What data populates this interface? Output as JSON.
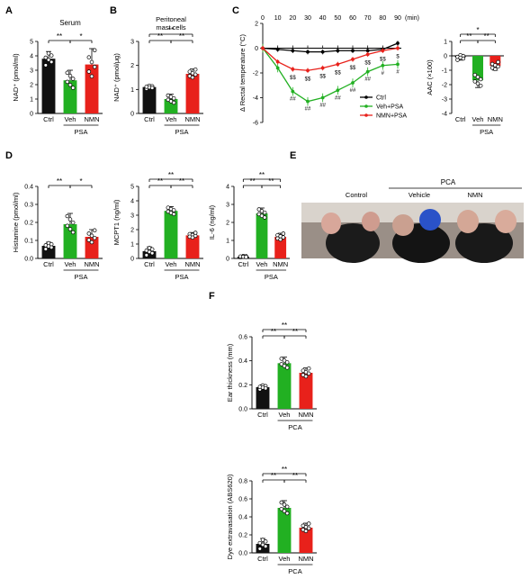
{
  "colors": {
    "ctrl": "#000000",
    "veh": "#22b022",
    "nmn": "#e8211b",
    "ctrl_bar": "#111111"
  },
  "panel_letters": {
    "A": "A",
    "B": "B",
    "C": "C",
    "D": "D",
    "E": "E",
    "F": "F"
  },
  "chart_data": [
    {
      "id": "A",
      "type": "bar",
      "title": "Serum",
      "ylabel": "NAD⁺ (pmol/ml)",
      "ylim": [
        0,
        5
      ],
      "yticks": [
        "0",
        "1",
        "2",
        "3",
        "4",
        "5"
      ],
      "categories": [
        "Ctrl",
        "Veh",
        "NMN"
      ],
      "values": [
        3.8,
        2.3,
        3.4
      ],
      "errors": [
        0.5,
        0.7,
        1.1
      ],
      "group_label": "PSA",
      "significance": [
        {
          "between": [
            "Ctrl",
            "Veh"
          ],
          "text": "**"
        },
        {
          "between": [
            "Veh",
            "NMN"
          ],
          "text": "*"
        }
      ]
    },
    {
      "id": "B",
      "type": "bar",
      "title": "Peritoneal mast cells",
      "ylabel": "NAD⁺ (pmol/μg)",
      "ylim": [
        0,
        3
      ],
      "yticks": [
        "0",
        "1",
        "2",
        "3"
      ],
      "categories": [
        "Ctrl",
        "Veh",
        "NMN"
      ],
      "values": [
        1.1,
        0.6,
        1.65
      ],
      "errors": [
        0.08,
        0.2,
        0.2
      ],
      "group_label": "PSA",
      "significance": [
        {
          "between": [
            "Ctrl",
            "NMN"
          ],
          "text": "**"
        },
        {
          "between": [
            "Ctrl",
            "Veh"
          ],
          "text": "**"
        },
        {
          "between": [
            "Veh",
            "NMN"
          ],
          "text": "**"
        }
      ]
    },
    {
      "id": "C1",
      "type": "line",
      "xlabel": "(min)",
      "ylabel": "Δ Rectal temperature (°C)",
      "ylim": [
        -6,
        2
      ],
      "yticks": [
        "-6",
        "-4",
        "-2",
        "0",
        "2"
      ],
      "x": [
        0,
        10,
        20,
        30,
        40,
        50,
        60,
        70,
        80,
        90
      ],
      "series": [
        {
          "name": "Ctrl",
          "values": [
            0,
            -0.1,
            -0.2,
            -0.3,
            -0.3,
            -0.2,
            -0.2,
            -0.2,
            -0.1,
            0.4
          ]
        },
        {
          "name": "Veh+PSA",
          "values": [
            0,
            -1.6,
            -3.5,
            -4.3,
            -4.0,
            -3.4,
            -2.8,
            -1.9,
            -1.4,
            -1.3
          ]
        },
        {
          "name": "NMN+PSA",
          "values": [
            0,
            -1.1,
            -1.7,
            -1.8,
            -1.6,
            -1.3,
            -0.9,
            -0.5,
            -0.2,
            0
          ]
        }
      ],
      "annotations_ss": [
        "$$",
        "$$",
        "$$",
        "$$",
        "$$",
        "$$",
        "$$",
        "$"
      ],
      "annotations_hash": [
        "##",
        "##",
        "##",
        "##",
        "##",
        "##",
        "#",
        "#"
      ]
    },
    {
      "id": "C2",
      "type": "bar",
      "ylabel": "AAC (×100)",
      "ylim": [
        -4,
        1
      ],
      "yticks": [
        "-4",
        "-3",
        "-2",
        "-1",
        "0",
        "1"
      ],
      "categories": [
        "Ctrl",
        "Veh",
        "NMN"
      ],
      "values": [
        -0.1,
        -1.7,
        -0.7
      ],
      "errors": [
        0.2,
        0.5,
        0.3
      ],
      "group_label": "PSA",
      "significance": [
        {
          "between": [
            "Ctrl",
            "NMN"
          ],
          "text": "*"
        },
        {
          "between": [
            "Ctrl",
            "Veh"
          ],
          "text": "**"
        },
        {
          "between": [
            "Veh",
            "NMN"
          ],
          "text": "**"
        }
      ]
    },
    {
      "id": "D1",
      "type": "bar",
      "ylabel": "Histamine (pmol/ml)",
      "ylim": [
        0,
        0.4
      ],
      "yticks": [
        "0.0",
        "0.1",
        "0.2",
        "0.3",
        "0.4"
      ],
      "categories": [
        "Ctrl",
        "Veh",
        "NMN"
      ],
      "values": [
        0.07,
        0.19,
        0.12
      ],
      "errors": [
        0.02,
        0.06,
        0.04
      ],
      "group_label": "PSA",
      "significance": [
        {
          "between": [
            "Ctrl",
            "Veh"
          ],
          "text": "**"
        },
        {
          "between": [
            "Veh",
            "NMN"
          ],
          "text": "*"
        }
      ]
    },
    {
      "id": "D2",
      "type": "bar",
      "ylabel": "MCPT1 (ng/ml)",
      "ylim": [
        0,
        5
      ],
      "yticks": [
        "0",
        "1",
        "2",
        "3",
        "4",
        "5"
      ],
      "categories": [
        "Ctrl",
        "Veh",
        "NMN"
      ],
      "values": [
        0.5,
        3.3,
        1.6
      ],
      "errors": [
        0.3,
        0.3,
        0.2
      ],
      "group_label": "PSA",
      "significance": [
        {
          "between": [
            "Ctrl",
            "NMN"
          ],
          "text": "**"
        },
        {
          "between": [
            "Ctrl",
            "Veh"
          ],
          "text": "**"
        },
        {
          "between": [
            "Veh",
            "NMN"
          ],
          "text": "**"
        }
      ]
    },
    {
      "id": "D3",
      "type": "bar",
      "ylabel": "IL-6 (ng/ml)",
      "ylim": [
        0,
        4
      ],
      "yticks": [
        "0",
        "1",
        "2",
        "3",
        "4"
      ],
      "categories": [
        "Ctrl",
        "Veh",
        "NMN"
      ],
      "values": [
        0.1,
        2.5,
        1.2
      ],
      "errors": [
        0.05,
        0.3,
        0.2
      ],
      "group_label": "PSA",
      "significance": [
        {
          "between": [
            "Ctrl",
            "NMN"
          ],
          "text": "**"
        },
        {
          "between": [
            "Ctrl",
            "Veh"
          ],
          "text": "**"
        },
        {
          "between": [
            "Veh",
            "NMN"
          ],
          "text": "**"
        }
      ]
    },
    {
      "id": "F1",
      "type": "bar",
      "ylabel": "Ear thickness (mm)",
      "ylim": [
        0,
        0.6
      ],
      "yticks": [
        "0.0",
        "0.2",
        "0.4",
        "0.6"
      ],
      "categories": [
        "Ctrl",
        "Veh",
        "NMN"
      ],
      "values": [
        0.18,
        0.38,
        0.3
      ],
      "errors": [
        0.02,
        0.05,
        0.04
      ],
      "group_label": "PCA",
      "significance": [
        {
          "between": [
            "Ctrl",
            "NMN"
          ],
          "text": "**"
        },
        {
          "between": [
            "Ctrl",
            "Veh"
          ],
          "text": "**"
        },
        {
          "between": [
            "Veh",
            "NMN"
          ],
          "text": "**"
        }
      ]
    },
    {
      "id": "F2",
      "type": "bar",
      "ylabel": "Dye extravasation (ABS620)",
      "ylim": [
        0,
        0.8
      ],
      "yticks": [
        "0.0",
        "0.2",
        "0.4",
        "0.6",
        "0.8"
      ],
      "categories": [
        "Ctrl",
        "Veh",
        "NMN"
      ],
      "values": [
        0.1,
        0.5,
        0.28
      ],
      "errors": [
        0.06,
        0.08,
        0.05
      ],
      "group_label": "PCA",
      "significance": [
        {
          "between": [
            "Ctrl",
            "NMN"
          ],
          "text": "**"
        },
        {
          "between": [
            "Ctrl",
            "Veh"
          ],
          "text": "**"
        },
        {
          "between": [
            "Veh",
            "NMN"
          ],
          "text": "**"
        }
      ]
    }
  ],
  "photo": {
    "group_label": "PCA",
    "columns": [
      "Control",
      "Vehicle",
      "NMN"
    ]
  }
}
